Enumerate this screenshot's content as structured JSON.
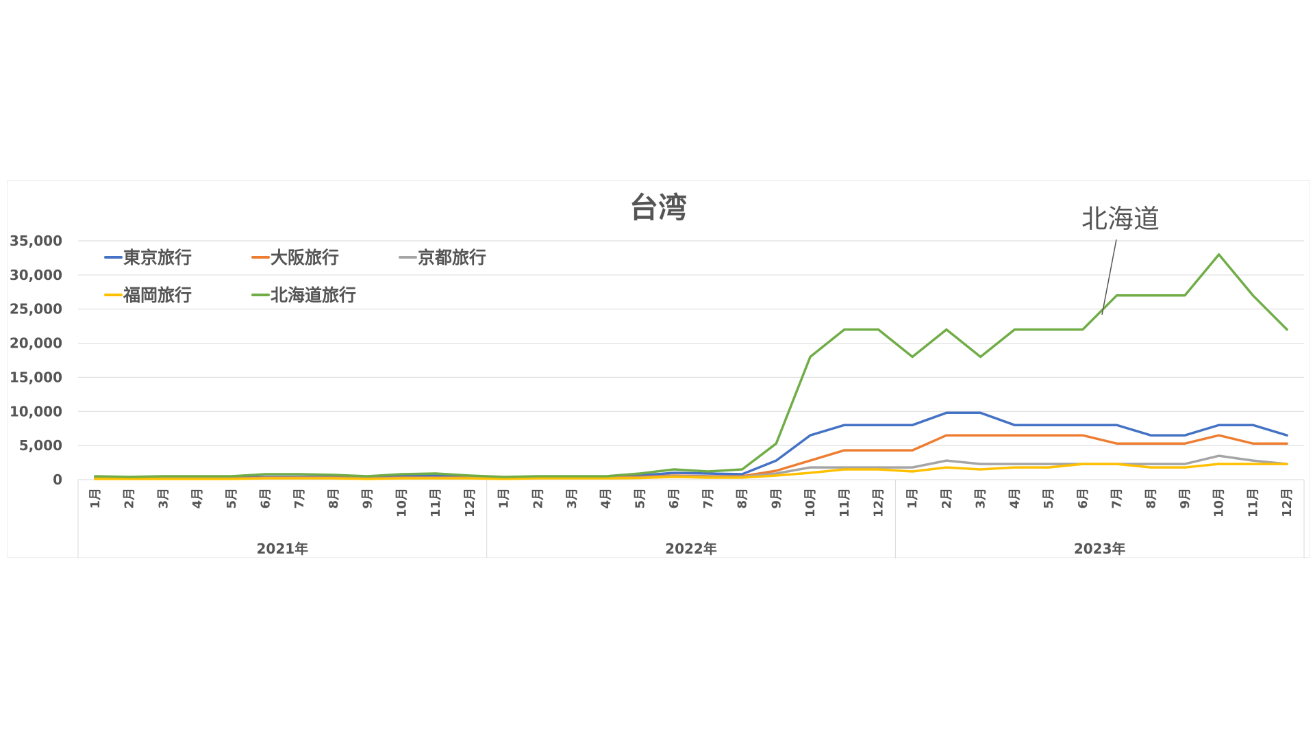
{
  "chart_data": {
    "type": "line",
    "title": "台湾",
    "xlabel": "",
    "ylabel": "",
    "ylim": [
      0,
      35000
    ],
    "yticks": [
      "35,000",
      "30,000",
      "25,000",
      "20,000",
      "15,000",
      "10,000",
      "5,000",
      "0"
    ],
    "ytick_values": [
      35000,
      30000,
      25000,
      20000,
      15000,
      10000,
      5000,
      0
    ],
    "grid": true,
    "legend_position": "top-left",
    "years": [
      "2021年",
      "2022年",
      "2023年"
    ],
    "months": [
      "1月",
      "2月",
      "3月",
      "4月",
      "5月",
      "6月",
      "7月",
      "8月",
      "9月",
      "10月",
      "11月",
      "12月"
    ],
    "series": [
      {
        "name": "東京旅行",
        "color": "#4472C4",
        "values": [
          300,
          250,
          300,
          300,
          300,
          400,
          400,
          400,
          300,
          500,
          600,
          400,
          300,
          400,
          400,
          400,
          600,
          1000,
          900,
          800,
          2800,
          6500,
          8000,
          8000,
          8000,
          9800,
          9800,
          8000,
          8000,
          8000,
          8000,
          6500,
          6500,
          8000,
          8000,
          6500
        ]
      },
      {
        "name": "大阪旅行",
        "color": "#ED7D31",
        "values": [
          200,
          200,
          200,
          200,
          200,
          300,
          300,
          300,
          200,
          300,
          300,
          300,
          200,
          300,
          300,
          300,
          400,
          600,
          500,
          500,
          1300,
          2800,
          4300,
          4300,
          4300,
          6500,
          6500,
          6500,
          6500,
          6500,
          5300,
          5300,
          5300,
          6500,
          5300,
          5300
        ]
      },
      {
        "name": "京都旅行",
        "color": "#A5A5A5",
        "values": [
          150,
          150,
          150,
          150,
          150,
          250,
          250,
          250,
          150,
          250,
          250,
          250,
          150,
          250,
          250,
          250,
          300,
          500,
          400,
          400,
          900,
          1800,
          1800,
          1800,
          1800,
          2800,
          2300,
          2300,
          2300,
          2300,
          2300,
          2300,
          2300,
          3500,
          2800,
          2300
        ]
      },
      {
        "name": "福岡旅行",
        "color": "#FFC000",
        "values": [
          100,
          100,
          100,
          100,
          100,
          200,
          200,
          200,
          100,
          200,
          200,
          200,
          100,
          200,
          200,
          200,
          250,
          400,
          300,
          300,
          600,
          1000,
          1500,
          1500,
          1200,
          1800,
          1500,
          1800,
          1800,
          2300,
          2300,
          1800,
          1800,
          2300,
          2300,
          2300
        ]
      },
      {
        "name": "北海道旅行",
        "color": "#70AD47",
        "values": [
          500,
          400,
          500,
          500,
          500,
          800,
          800,
          700,
          500,
          800,
          900,
          600,
          400,
          500,
          500,
          500,
          900,
          1500,
          1200,
          1500,
          5300,
          18000,
          22000,
          22000,
          18000,
          22000,
          18000,
          22000,
          22000,
          22000,
          27000,
          27000,
          27000,
          33000,
          27000,
          22000
        ]
      }
    ],
    "annotation": {
      "text": "北海道"
    }
  }
}
